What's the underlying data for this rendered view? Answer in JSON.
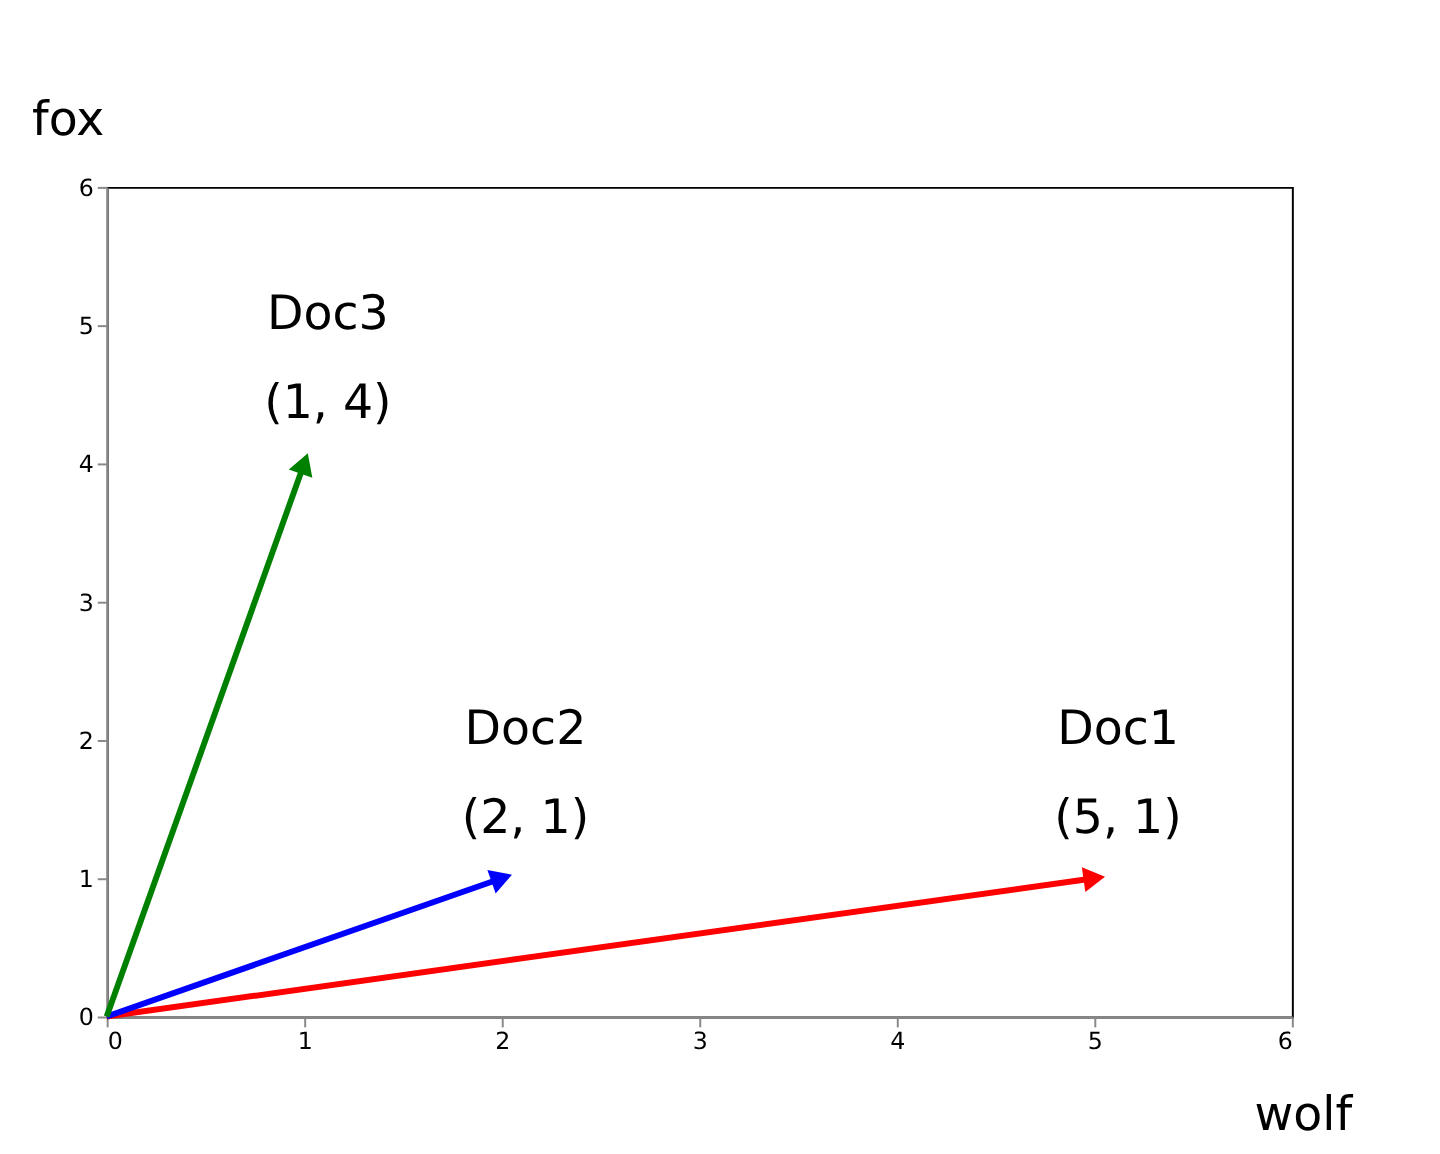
{
  "chart_data": {
    "type": "line",
    "xlabel": "wolf",
    "ylabel": "fox",
    "xlim": [
      0,
      6
    ],
    "ylim": [
      0,
      6
    ],
    "xticks": [
      0,
      1,
      2,
      3,
      4,
      5,
      6
    ],
    "yticks": [
      0,
      1,
      2,
      3,
      4,
      5,
      6
    ],
    "grid": false,
    "legend": false,
    "series": [
      {
        "color": "#ff0000",
        "x": [
          0,
          5
        ],
        "values": [
          0,
          1
        ]
      },
      {
        "color": "#0000ff",
        "x": [
          0,
          2
        ],
        "values": [
          0,
          1
        ]
      },
      {
        "color": "#008000",
        "x": [
          0,
          1
        ],
        "values": [
          0,
          4
        ]
      }
    ],
    "annotations": [
      "Doc1",
      "(5, 1)",
      "Doc2",
      "(2, 1)",
      "Doc3",
      "(1, 4)"
    ]
  }
}
